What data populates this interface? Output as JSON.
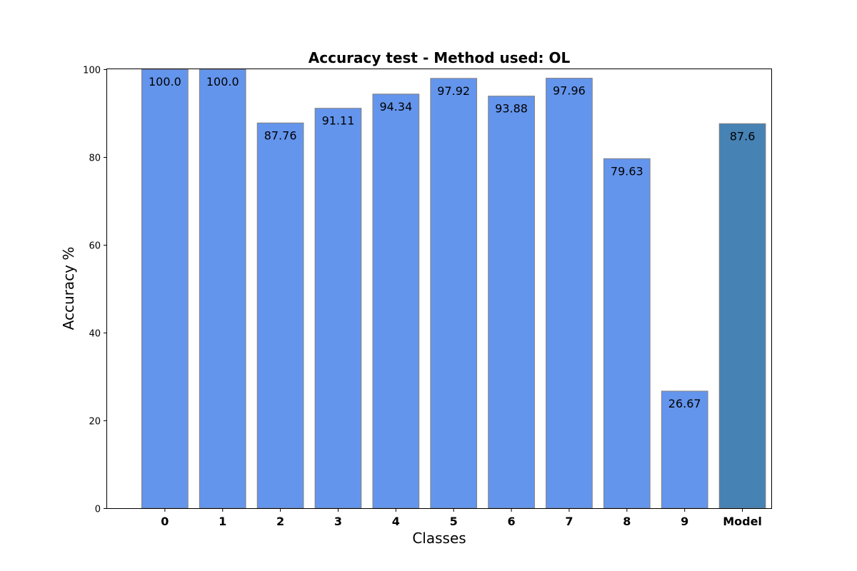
{
  "chart_data": {
    "type": "bar",
    "title": "Accuracy test - Method used: OL",
    "xlabel": "Classes",
    "ylabel": "Accuracy %",
    "ylim": [
      0,
      100
    ],
    "yticks": [
      0,
      20,
      40,
      60,
      80,
      100
    ],
    "categories": [
      "0",
      "1",
      "2",
      "3",
      "4",
      "5",
      "6",
      "7",
      "8",
      "9",
      "Model"
    ],
    "values": [
      100.0,
      100.0,
      87.76,
      91.11,
      94.34,
      97.92,
      93.88,
      97.96,
      79.63,
      26.67,
      87.6
    ],
    "data_labels": [
      "100.0",
      "100.0",
      "87.76",
      "91.11",
      "94.34",
      "97.92",
      "93.88",
      "97.96",
      "79.63",
      "26.67",
      "87.6"
    ],
    "grid": false,
    "legend": "none",
    "colors": {
      "class_bar": "#6495ed",
      "model_bar": "#4682b4",
      "bar_edge": "#808080",
      "axis": "#000000",
      "background": "#ffffff"
    }
  }
}
